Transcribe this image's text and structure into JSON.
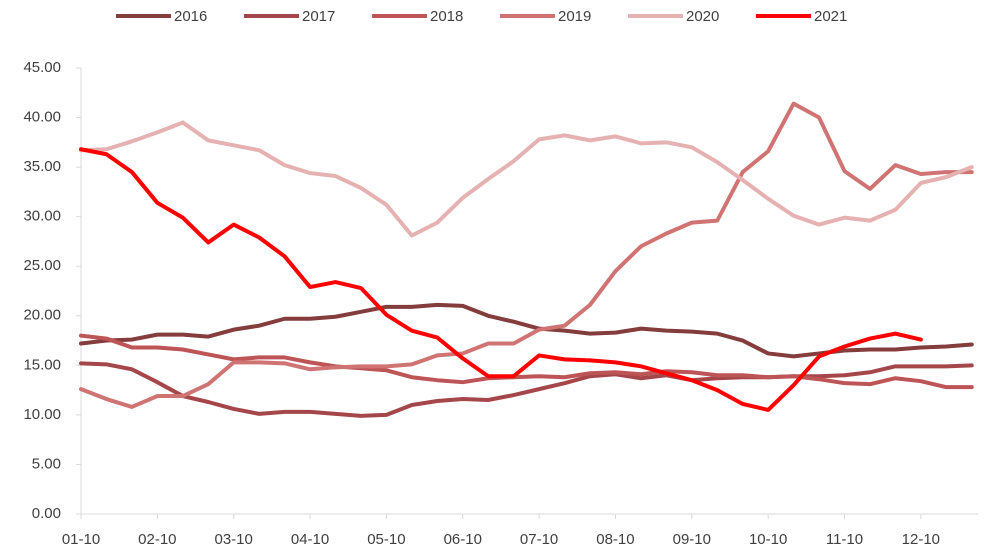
{
  "chart_data": {
    "type": "line",
    "categories": [
      "01-10",
      null,
      null,
      "02-10",
      null,
      null,
      "03-10",
      null,
      null,
      "04-10",
      null,
      null,
      "05-10",
      null,
      null,
      "06-10",
      null,
      null,
      "07-10",
      null,
      null,
      "08-10",
      null,
      null,
      "09-10",
      null,
      null,
      "10-10",
      null,
      null,
      "11-10",
      null,
      null,
      "12-10",
      null,
      null
    ],
    "series": [
      {
        "name": "2016",
        "color": "#843c3c",
        "values": [
          17.2,
          17.5,
          17.6,
          18.1,
          18.1,
          17.9,
          18.6,
          19.0,
          19.7,
          19.7,
          19.9,
          20.4,
          20.9,
          20.9,
          21.1,
          21.0,
          20.0,
          19.4,
          18.7,
          18.5,
          18.2,
          18.3,
          18.7,
          18.5,
          18.4,
          18.2,
          17.5,
          16.2,
          15.9,
          16.2,
          16.5,
          16.6,
          16.6,
          16.8,
          16.9,
          17.1
        ]
      },
      {
        "name": "2017",
        "color": "#a5474a",
        "values": [
          15.2,
          15.1,
          14.6,
          13.3,
          11.9,
          11.3,
          10.6,
          10.1,
          10.3,
          10.3,
          10.1,
          9.9,
          10.0,
          11.0,
          11.4,
          11.6,
          11.5,
          12.0,
          12.6,
          13.2,
          13.9,
          14.1,
          13.7,
          14.0,
          13.5,
          13.7,
          13.8,
          13.8,
          13.9,
          13.9,
          14.0,
          14.3,
          14.9,
          14.9,
          14.9,
          15.0
        ]
      },
      {
        "name": "2018",
        "color": "#bd5456",
        "values": [
          18.0,
          17.7,
          16.8,
          16.8,
          16.6,
          16.1,
          15.6,
          15.8,
          15.8,
          15.3,
          14.9,
          14.7,
          14.5,
          13.8,
          13.5,
          13.3,
          13.7,
          13.8,
          13.9,
          13.8,
          14.2,
          14.3,
          14.1,
          14.4,
          14.3,
          14.0,
          14.0,
          13.8,
          13.9,
          13.6,
          13.2,
          13.1,
          13.7,
          13.4,
          12.8,
          12.8
        ]
      },
      {
        "name": "2019",
        "color": "#cf7373",
        "values": [
          12.6,
          11.6,
          10.8,
          11.9,
          11.9,
          13.1,
          15.3,
          15.3,
          15.2,
          14.6,
          14.8,
          14.9,
          14.9,
          15.1,
          16.0,
          16.2,
          17.2,
          17.2,
          18.6,
          19.0,
          21.1,
          24.5,
          27.0,
          28.3,
          29.4,
          29.6,
          34.5,
          36.6,
          41.4,
          40.0,
          34.6,
          32.8,
          35.2,
          34.3,
          34.5,
          34.5
        ]
      },
      {
        "name": "2020",
        "color": "#e6b1b1",
        "values": [
          36.7,
          36.8,
          37.6,
          38.5,
          39.5,
          37.7,
          37.2,
          36.7,
          35.2,
          34.4,
          34.1,
          32.9,
          31.2,
          28.1,
          29.4,
          31.9,
          33.8,
          35.6,
          37.8,
          38.2,
          37.7,
          38.1,
          37.4,
          37.5,
          37.0,
          35.5,
          33.7,
          31.8,
          30.1,
          29.2,
          29.9,
          29.6,
          30.7,
          33.4,
          34.0,
          35.0
        ]
      },
      {
        "name": "2021",
        "color": "#ff0000",
        "values": [
          36.8,
          36.3,
          34.5,
          31.4,
          29.9,
          27.4,
          29.2,
          27.9,
          26.0,
          22.9,
          23.4,
          22.8,
          20.1,
          18.5,
          17.8,
          15.7,
          13.9,
          13.9,
          16.0,
          15.6,
          15.5,
          15.3,
          14.9,
          14.2,
          13.5,
          12.5,
          11.1,
          10.5,
          13.0,
          15.9,
          16.9,
          17.7,
          18.2,
          17.6,
          null,
          null
        ]
      }
    ],
    "ylim": [
      0,
      45
    ],
    "yticks": [
      {
        "value": 0,
        "label": "0.00"
      },
      {
        "value": 5,
        "label": "5.00"
      },
      {
        "value": 10,
        "label": "10.00"
      },
      {
        "value": 15,
        "label": "15.00"
      },
      {
        "value": 20,
        "label": "20.00"
      },
      {
        "value": 25,
        "label": "25.00"
      },
      {
        "value": 30,
        "label": "30.00"
      },
      {
        "value": 35,
        "label": "35.00"
      },
      {
        "value": 40,
        "label": "40.00"
      },
      {
        "value": 45,
        "label": "45.00"
      }
    ],
    "legend": "top"
  }
}
